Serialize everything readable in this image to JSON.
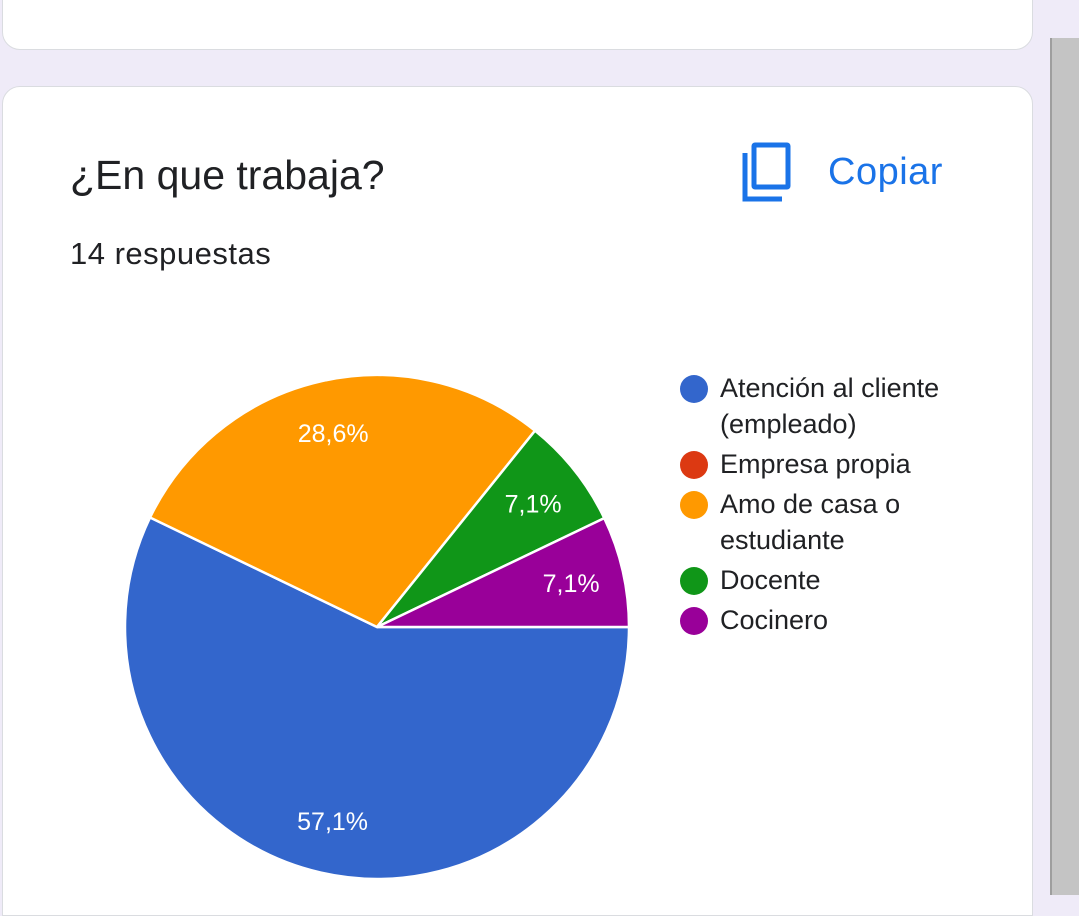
{
  "question": {
    "title": "¿En que trabaja?",
    "responses": "14 respuestas"
  },
  "toolbar": {
    "copy_label": "Copiar",
    "copy_icon": "copy-icon"
  },
  "colors": {
    "accent": "#1a73e8",
    "page_background": "#efebf8"
  },
  "chart_data": {
    "type": "pie",
    "slices": [
      {
        "label": "Atención al cliente (empleado)",
        "value": 57.1,
        "display": "57,1%",
        "color": "#3366cc"
      },
      {
        "label": "Empresa propia",
        "value": 0,
        "display": "",
        "color": "#dc3912"
      },
      {
        "label": "Amo de casa o estudiante",
        "value": 28.6,
        "display": "28,6%",
        "color": "#ff9900"
      },
      {
        "label": "Docente",
        "value": 7.1,
        "display": "7,1%",
        "color": "#109618"
      },
      {
        "label": "Cocinero",
        "value": 7.1,
        "display": "7,1%",
        "color": "#990099"
      }
    ],
    "legend_position": "right"
  }
}
